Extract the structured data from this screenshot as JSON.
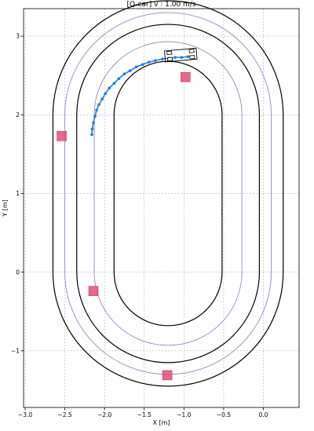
{
  "chart_data": {
    "type": "scatter",
    "title": "[Q-car] v : 1.00 m/s",
    "xlabel": "X [m]",
    "ylabel": "Y [m]",
    "xlim": [
      -3.02,
      0.45
    ],
    "ylim": [
      -1.72,
      3.35
    ],
    "xticks": [
      -3.0,
      -2.5,
      -2.0,
      -1.5,
      -1.0,
      -0.5,
      0.0
    ],
    "xtick_labels": [
      "−3.0",
      "−2.5",
      "−2.0",
      "−1.5",
      "−1.0",
      "−0.5",
      "0.0"
    ],
    "yticks": [
      -1,
      0,
      1,
      2,
      3
    ],
    "ytick_labels": [
      "−1",
      "0",
      "1",
      "2",
      "3"
    ],
    "grid": true,
    "track": {
      "center_x": -1.2,
      "center_y": 1.0,
      "half_straight": 1.0,
      "boundary_radii": [
        1.45,
        1.15,
        0.68
      ],
      "centerline_radii": [
        1.3,
        0.93
      ],
      "boundary_color": "#000000",
      "centerline_color": "#8c8cbf"
    },
    "obstacles": {
      "name": "obstacles",
      "color": "#e0507a",
      "points": [
        [
          -2.54,
          1.73
        ],
        [
          -0.98,
          2.48
        ],
        [
          -2.14,
          -0.24
        ],
        [
          -1.21,
          -1.31
        ]
      ]
    },
    "series": [
      {
        "color": "#1e7be0",
        "x": [
          -2.16,
          -2.155,
          -2.14,
          -2.12,
          -2.1,
          -2.07,
          -2.03,
          -1.99,
          -1.94,
          -1.88,
          -1.82,
          -1.75,
          -1.68,
          -1.6,
          -1.52,
          -1.44,
          -1.36,
          -1.27,
          -1.19,
          -1.11,
          -1.03,
          -0.95
        ],
        "y": [
          1.75,
          1.82,
          1.9,
          1.98,
          2.06,
          2.13,
          2.2,
          2.27,
          2.34,
          2.4,
          2.46,
          2.52,
          2.56,
          2.61,
          2.64,
          2.67,
          2.69,
          2.71,
          2.72,
          2.73,
          2.73,
          2.74
        ]
      }
    ],
    "vehicle": {
      "center": [
        -1.04,
        2.76
      ],
      "length": 0.4,
      "width": 0.14,
      "heading_deg": 5
    }
  }
}
